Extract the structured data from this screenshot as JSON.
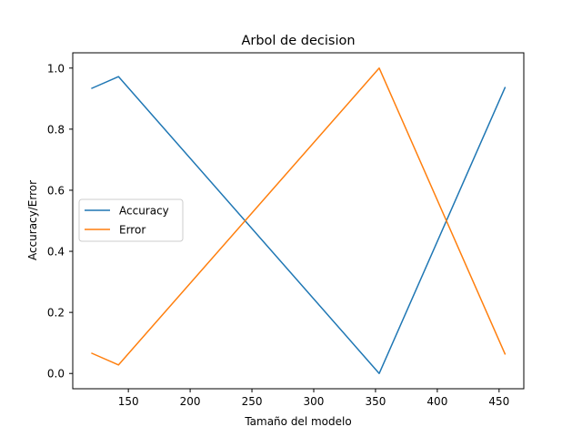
{
  "chart_data": {
    "type": "line",
    "title": "Arbol de decision",
    "xlabel": "Tamaño del modelo",
    "ylabel": "Accuracy/Error",
    "xlim": [
      105,
      470
    ],
    "ylim": [
      -0.05,
      1.05
    ],
    "xticks": [
      150,
      200,
      250,
      300,
      350,
      400,
      450
    ],
    "yticks": [
      0.0,
      0.2,
      0.4,
      0.6,
      0.8,
      1.0
    ],
    "ytick_labels": [
      "0.0",
      "0.2",
      "0.4",
      "0.6",
      "0.8",
      "1.0"
    ],
    "grid": false,
    "legend": "center-left",
    "series": [
      {
        "name": "Accuracy",
        "color": "#1f77b4",
        "x": [
          120,
          142,
          353,
          455
        ],
        "y": [
          0.933,
          0.972,
          0.0,
          0.938
        ]
      },
      {
        "name": "Error",
        "color": "#ff7f0e",
        "x": [
          120,
          142,
          353,
          455
        ],
        "y": [
          0.067,
          0.028,
          1.0,
          0.062
        ]
      }
    ]
  }
}
